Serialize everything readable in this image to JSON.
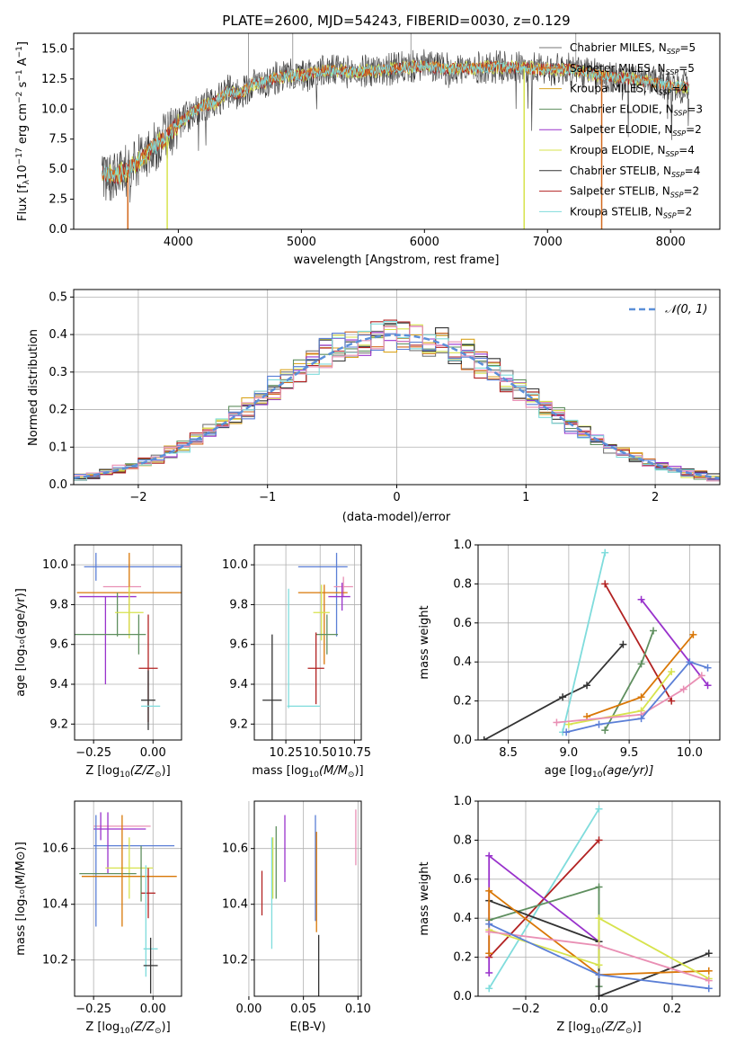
{
  "colors": {
    "c1": "#ff7f7f",
    "c2": "#d97706",
    "c3": "#5aa02c",
    "m_chab": "#777777",
    "m_salp": "#d2691e",
    "m_krou": "#daa520",
    "e_chab": "#5f8f5f",
    "e_salp": "#9932cc",
    "e_krou": "#d7e34d",
    "s_chab": "#333333",
    "s_salp": "#b22222",
    "s_krou": "#7fdcdc",
    "blue": "#5b7fd6",
    "pink": "#e98fb4",
    "norm": "#5b8fd8"
  },
  "chart_data": [
    {
      "type": "line",
      "title": "PLATE=2600, MJD=54243, FIBERID=0030, z=0.129",
      "xlabel": "wavelength [Angstrom, rest frame]",
      "ylabel": "Flux [fλ10⁻¹⁷ erg cm⁻² s⁻¹ A⁻¹]",
      "xlim": [
        3150,
        8400
      ],
      "ylim": [
        0,
        16.3
      ],
      "xticks": [
        "4000",
        "5000",
        "6000",
        "7000",
        "8000"
      ],
      "yticks": [
        "0.0",
        "2.5",
        "5.0",
        "7.5",
        "10.0",
        "12.5",
        "15.0"
      ],
      "legend": [
        "Chabrier MILES, N_SSP=5",
        "Salpeter MILES, N_SSP=5",
        "Kroupa MILES, N_SSP=4",
        "Chabrier ELODIE, N_SSP=3",
        "Salpeter ELODIE, N_SSP=2",
        "Kroupa ELODIE, N_SSP=4",
        "Chabrier STELIB, N_SSP=4",
        "Salpeter STELIB, N_SSP=2",
        "Kroupa STELIB, N_SSP=2"
      ],
      "legend_labels": [
        {
          "a": "Chabrier MILES, N",
          "s": "SSP",
          "b": "=5"
        },
        {
          "a": "Salpeter MILES, N",
          "s": "SSP",
          "b": "=5"
        },
        {
          "a": "Kroupa MILES, N",
          "s": "SSP",
          "b": "=4"
        },
        {
          "a": "Chabrier ELODIE, N",
          "s": "SSP",
          "b": "=3"
        },
        {
          "a": "Salpeter ELODIE, N",
          "s": "SSP",
          "b": "=2"
        },
        {
          "a": "Kroupa ELODIE, N",
          "s": "SSP",
          "b": "=4"
        },
        {
          "a": "Chabrier STELIB, N",
          "s": "SSP",
          "b": "=4"
        },
        {
          "a": "Salpeter STELIB, N",
          "s": "SSP",
          "b": "=2"
        },
        {
          "a": "Kroupa STELIB, N",
          "s": "SSP",
          "b": "=2"
        }
      ],
      "legend_position": "right",
      "continuum": {
        "x": [
          3380,
          3500,
          3600,
          3700,
          3800,
          3900,
          4000,
          4100,
          4200,
          4300,
          4400,
          4500,
          4600,
          4700,
          4800,
          4900,
          5000,
          5200,
          5400,
          5600,
          5800,
          6000,
          6200,
          6400,
          6600,
          6800,
          7000,
          7200,
          7400,
          7600,
          7800,
          8000,
          8150
        ],
        "y": [
          4.6,
          4.5,
          5.0,
          5.9,
          6.8,
          7.6,
          8.8,
          9.6,
          10.3,
          10.5,
          11.5,
          11.2,
          12.1,
          12.2,
          12.6,
          12.8,
          12.8,
          13.2,
          13.1,
          13.2,
          13.4,
          13.6,
          13.3,
          13.4,
          13.5,
          13.4,
          13.3,
          13.3,
          12.8,
          12.6,
          12.3,
          11.9,
          11.8
        ]
      },
      "spikes_down": [
        {
          "x": 3590,
          "y": 0.0,
          "series": "Salpeter MILES"
        },
        {
          "x": 3910,
          "y": 0.0,
          "series": "Kroupa ELODIE"
        },
        {
          "x": 6810,
          "y": 0.0,
          "series": "Kroupa ELODIE"
        },
        {
          "x": 7440,
          "y": 0.0,
          "series": "Salpeter MILES"
        }
      ],
      "spikes_up": [
        {
          "x": 4570,
          "y": 16.3
        },
        {
          "x": 4930,
          "y": 16.3
        },
        {
          "x": 5890,
          "y": 16.3
        },
        {
          "x": 7230,
          "y": 16.3
        }
      ],
      "grid": false
    },
    {
      "type": "histogram",
      "xlabel": "(data-model)/error",
      "ylabel": "Normed distribution",
      "xlim": [
        -2.5,
        2.5
      ],
      "ylim": [
        0,
        0.52
      ],
      "xticks": [
        "−2",
        "−1",
        "0",
        "1",
        "2"
      ],
      "yticks": [
        "0.0",
        "0.1",
        "0.2",
        "0.3",
        "0.4",
        "0.5"
      ],
      "bin_width": 0.1,
      "bins_from": -2.5,
      "reference_curve": "N(0,1)",
      "legend_main": "𝒩(0, 1)",
      "legend_position": "top-right",
      "grid": true
    },
    {
      "type": "errorbar",
      "xlabel_main": "Z [log",
      "xlabel_sub": "10",
      "xlabel_rest": "(Z/Z",
      "xlabel_end": ")]",
      "ylabel": "age  [log₁₀(age/yr)]",
      "xlim": [
        -0.33,
        0.12
      ],
      "ylim": [
        9.12,
        10.1
      ],
      "xticks": [
        "−0.25",
        "0.00"
      ],
      "xtick_values": [
        -0.25,
        0.0
      ],
      "yticks": [
        "9.2",
        "9.4",
        "9.6",
        "9.8",
        "10.0"
      ],
      "ytick_values": [
        9.2,
        9.4,
        9.6,
        9.8,
        10.0
      ],
      "points": [
        {
          "x": -0.08,
          "y": 9.99,
          "xerr": 0.21,
          "yerr": 0.0,
          "c": "#5b7fd6"
        },
        {
          "x": -0.24,
          "y": 9.99,
          "xerr": 0.0,
          "yerr": 0.07,
          "c": "#5b7fd6"
        },
        {
          "x": -0.13,
          "y": 9.89,
          "xerr": 0.08,
          "yerr": 0.0,
          "c": "#e98fb4"
        },
        {
          "x": -0.1,
          "y": 9.86,
          "xerr": 0.22,
          "yerr": 0.2,
          "c": "#d97706"
        },
        {
          "x": -0.19,
          "y": 9.84,
          "xerr": 0.12,
          "yerr": 0.0,
          "c": "#9932cc"
        },
        {
          "x": -0.2,
          "y": 9.62,
          "xerr": 0.0,
          "yerr": 0.22,
          "c": "#9932cc"
        },
        {
          "x": -0.15,
          "y": 9.75,
          "xerr": 0.0,
          "yerr": 0.11,
          "c": "#5f8f5f"
        },
        {
          "x": -0.1,
          "y": 9.76,
          "xerr": 0.06,
          "yerr": 0.13,
          "c": "#d7e34d"
        },
        {
          "x": -0.19,
          "y": 9.65,
          "xerr": 0.16,
          "yerr": 0.0,
          "c": "#5f8f5f"
        },
        {
          "x": -0.06,
          "y": 9.65,
          "xerr": 0.0,
          "yerr": 0.1,
          "c": "#5f8f5f"
        },
        {
          "x": -0.02,
          "y": 9.48,
          "xerr": 0.04,
          "yerr": 0.27,
          "c": "#b22222"
        },
        {
          "x": -0.02,
          "y": 9.32,
          "xerr": 0.03,
          "yerr": 0.15,
          "c": "#333333"
        },
        {
          "x": -0.01,
          "y": 9.29,
          "xerr": 0.04,
          "yerr": 0.0,
          "c": "#7fdcdc"
        }
      ],
      "grid": true
    },
    {
      "type": "errorbar",
      "xlabel_main": "mass [log",
      "xlabel_sub": "10",
      "xlabel_rest": "(M/M",
      "xlabel_end": ")]",
      "ylabel": "",
      "xlim": [
        10.02,
        10.8
      ],
      "ylim": [
        9.12,
        10.1
      ],
      "xticks": [
        "10.25",
        "10.50",
        "10.75"
      ],
      "xtick_values": [
        10.25,
        10.5,
        10.75
      ],
      "yticks": [
        "9.2",
        "9.4",
        "9.6",
        "9.8",
        "10.0"
      ],
      "ytick_values": [
        9.2,
        9.4,
        9.6,
        9.8,
        10.0
      ],
      "points": [
        {
          "x": 10.52,
          "y": 9.99,
          "xerr": 0.18,
          "yerr": 0.0,
          "c": "#5b7fd6"
        },
        {
          "x": 10.62,
          "y": 9.85,
          "xerr": 0.0,
          "yerr": 0.21,
          "c": "#5b7fd6"
        },
        {
          "x": 10.67,
          "y": 9.89,
          "xerr": 0.07,
          "yerr": 0.05,
          "c": "#e98fb4"
        },
        {
          "x": 10.52,
          "y": 9.86,
          "xerr": 0.18,
          "yerr": 0.0,
          "c": "#d97706"
        },
        {
          "x": 10.53,
          "y": 9.7,
          "xerr": 0.0,
          "yerr": 0.2,
          "c": "#d97706"
        },
        {
          "x": 10.64,
          "y": 9.84,
          "xerr": 0.08,
          "yerr": 0.0,
          "c": "#9932cc"
        },
        {
          "x": 10.66,
          "y": 9.84,
          "xerr": 0.0,
          "yerr": 0.07,
          "c": "#9932cc"
        },
        {
          "x": 10.51,
          "y": 9.76,
          "xerr": 0.06,
          "yerr": 0.14,
          "c": "#d7e34d"
        },
        {
          "x": 10.55,
          "y": 9.65,
          "xerr": 0.08,
          "yerr": 0.1,
          "c": "#5f8f5f"
        },
        {
          "x": 10.27,
          "y": 9.58,
          "xerr": 0.0,
          "yerr": 0.3,
          "c": "#7fdcdc"
        },
        {
          "x": 10.47,
          "y": 9.48,
          "xerr": 0.06,
          "yerr": 0.18,
          "c": "#b22222"
        },
        {
          "x": 10.15,
          "y": 9.32,
          "xerr": 0.07,
          "yerr": 0.33,
          "c": "#333333"
        },
        {
          "x": 10.38,
          "y": 9.29,
          "xerr": 0.12,
          "yerr": 0.0,
          "c": "#7fdcdc"
        }
      ],
      "grid": true
    },
    {
      "type": "line",
      "xlabel_main": "age  [log",
      "xlabel_sub": "10",
      "xlabel_rest": "(age/yr)]",
      "xlabel_end": "",
      "ylabel": "mass weight",
      "xlim": [
        8.25,
        10.25
      ],
      "ylim": [
        0,
        1.0
      ],
      "xticks": [
        "8.5",
        "9.0",
        "9.5",
        "10.0"
      ],
      "xtick_values": [
        8.5,
        9.0,
        9.5,
        10.0
      ],
      "yticks": [
        "0.0",
        "0.2",
        "0.4",
        "0.6",
        "0.8",
        "1.0"
      ],
      "ytick_values": [
        0,
        0.2,
        0.4,
        0.6,
        0.8,
        1.0
      ],
      "series": [
        {
          "c": "#333333",
          "x": [
            8.3,
            8.95,
            9.15,
            9.45
          ],
          "y": [
            0.0,
            0.22,
            0.28,
            0.49
          ]
        },
        {
          "c": "#7fdcdc",
          "x": [
            8.95,
            9.3
          ],
          "y": [
            0.04,
            0.96
          ]
        },
        {
          "c": "#b22222",
          "x": [
            9.3,
            9.85
          ],
          "y": [
            0.8,
            0.2
          ]
        },
        {
          "c": "#9932cc",
          "x": [
            9.6,
            10.15
          ],
          "y": [
            0.72,
            0.28
          ]
        },
        {
          "c": "#5f8f5f",
          "x": [
            9.3,
            9.6,
            9.7
          ],
          "y": [
            0.05,
            0.39,
            0.56
          ]
        },
        {
          "c": "#d97706",
          "x": [
            9.15,
            9.6,
            10.03
          ],
          "y": [
            0.12,
            0.22,
            0.54
          ]
        },
        {
          "c": "#d7e34d",
          "x": [
            9.0,
            9.6,
            9.85
          ],
          "y": [
            0.08,
            0.15,
            0.35
          ]
        },
        {
          "c": "#e98fb4",
          "x": [
            8.9,
            9.6,
            9.95,
            10.1
          ],
          "y": [
            0.09,
            0.13,
            0.26,
            0.33
          ]
        },
        {
          "c": "#5b7fd6",
          "x": [
            8.98,
            9.25,
            9.6,
            10.0,
            10.15
          ],
          "y": [
            0.04,
            0.08,
            0.11,
            0.4,
            0.37
          ]
        }
      ],
      "grid": true
    },
    {
      "type": "errorbar",
      "xlabel_main": "Z [log",
      "xlabel_sub": "10",
      "xlabel_rest": "(Z/Z",
      "xlabel_end": ")]",
      "ylabel": "mass [log₁₀(M/M⊙)]",
      "xlim": [
        -0.33,
        0.12
      ],
      "ylim": [
        10.07,
        10.77
      ],
      "xticks": [
        "−0.25",
        "0.00"
      ],
      "xtick_values": [
        -0.25,
        0.0
      ],
      "yticks": [
        "10.2",
        "10.4",
        "10.6"
      ],
      "ytick_values": [
        10.2,
        10.4,
        10.6
      ],
      "points": [
        {
          "x": -0.13,
          "y": 10.68,
          "xerr": 0.12,
          "yerr": 0.0,
          "c": "#e98fb4"
        },
        {
          "x": -0.22,
          "y": 10.68,
          "xerr": 0.0,
          "yerr": 0.05,
          "c": "#9932cc"
        },
        {
          "x": -0.14,
          "y": 10.67,
          "xerr": 0.11,
          "yerr": 0.0,
          "c": "#9932cc"
        },
        {
          "x": -0.24,
          "y": 10.52,
          "xerr": 0.0,
          "yerr": 0.2,
          "c": "#5b7fd6"
        },
        {
          "x": -0.08,
          "y": 10.61,
          "xerr": 0.17,
          "yerr": 0.0,
          "c": "#5b7fd6"
        },
        {
          "x": -0.19,
          "y": 10.62,
          "xerr": 0.0,
          "yerr": 0.11,
          "c": "#9932cc"
        },
        {
          "x": -0.1,
          "y": 10.53,
          "xerr": 0.1,
          "yerr": 0.11,
          "c": "#d7e34d"
        },
        {
          "x": -0.19,
          "y": 10.51,
          "xerr": 0.12,
          "yerr": 0.0,
          "c": "#5f8f5f"
        },
        {
          "x": -0.1,
          "y": 10.5,
          "xerr": 0.2,
          "yerr": 0.0,
          "c": "#d97706"
        },
        {
          "x": -0.13,
          "y": 10.52,
          "xerr": 0.0,
          "yerr": 0.2,
          "c": "#d97706"
        },
        {
          "x": -0.05,
          "y": 10.51,
          "xerr": 0.0,
          "yerr": 0.1,
          "c": "#5f8f5f"
        },
        {
          "x": -0.02,
          "y": 10.44,
          "xerr": 0.03,
          "yerr": 0.09,
          "c": "#b22222"
        },
        {
          "x": -0.01,
          "y": 10.24,
          "xerr": 0.03,
          "yerr": 0.0,
          "c": "#7fdcdc"
        },
        {
          "x": -0.03,
          "y": 10.34,
          "xerr": 0.0,
          "yerr": 0.2,
          "c": "#7fdcdc"
        },
        {
          "x": -0.01,
          "y": 10.18,
          "xerr": 0.03,
          "yerr": 0.1,
          "c": "#333333"
        }
      ],
      "grid": true
    },
    {
      "type": "errorbar",
      "xlabel_main": "E(B-V)",
      "xlabel_sub": "",
      "xlabel_rest": "",
      "xlabel_end": "",
      "ylabel": "",
      "xlim": [
        0.005,
        0.103
      ],
      "ylim": [
        10.07,
        10.77
      ],
      "xticks": [
        "0.00",
        "0.05",
        "0.10"
      ],
      "xtick_values": [
        0.0,
        0.05,
        0.1
      ],
      "yticks": [
        "10.2",
        "10.4",
        "10.6"
      ],
      "ytick_values": [
        10.2,
        10.4,
        10.6
      ],
      "points": [
        {
          "x": 0.012,
          "y": 10.44,
          "xerr": 0.0,
          "yerr": 0.08,
          "c": "#b22222"
        },
        {
          "x": 0.021,
          "y": 10.44,
          "xerr": 0.0,
          "yerr": 0.2,
          "c": "#7fdcdc"
        },
        {
          "x": 0.022,
          "y": 10.53,
          "xerr": 0.0,
          "yerr": 0.11,
          "c": "#d7e34d"
        },
        {
          "x": 0.025,
          "y": 10.55,
          "xerr": 0.0,
          "yerr": 0.13,
          "c": "#5f8f5f"
        },
        {
          "x": 0.033,
          "y": 10.6,
          "xerr": 0.0,
          "yerr": 0.12,
          "c": "#9932cc"
        },
        {
          "x": 0.061,
          "y": 10.53,
          "xerr": 0.0,
          "yerr": 0.19,
          "c": "#5b7fd6"
        },
        {
          "x": 0.062,
          "y": 10.48,
          "xerr": 0.0,
          "yerr": 0.18,
          "c": "#d97706"
        },
        {
          "x": 0.064,
          "y": 10.15,
          "xerr": 0.0,
          "yerr": 0.14,
          "c": "#333333"
        },
        {
          "x": 0.098,
          "y": 10.64,
          "xerr": 0.0,
          "yerr": 0.1,
          "c": "#e98fb4"
        }
      ],
      "grid": true
    },
    {
      "type": "line",
      "xlabel_main": "Z [log",
      "xlabel_sub": "10",
      "xlabel_rest": "(Z/Z",
      "xlabel_end": ")]",
      "ylabel": "mass weight",
      "xlim": [
        -0.33,
        0.33
      ],
      "ylim": [
        0,
        1.0
      ],
      "xticks": [
        "−0.2",
        "0.0",
        "0.2"
      ],
      "xtick_values": [
        -0.2,
        0.0,
        0.2
      ],
      "yticks": [
        "0.0",
        "0.2",
        "0.4",
        "0.6",
        "0.8",
        "1.0"
      ],
      "ytick_values": [
        0,
        0.2,
        0.4,
        0.6,
        0.8,
        1.0
      ],
      "series": [
        {
          "c": "#7fdcdc",
          "x": [
            -0.3,
            0.0
          ],
          "y": [
            0.04,
            0.96
          ]
        },
        {
          "c": "#b22222",
          "x": [
            -0.3,
            0.0
          ],
          "y": [
            0.2,
            0.8
          ]
        },
        {
          "c": "#9932cc",
          "x": [
            -0.3,
            -0.3,
            0.0
          ],
          "y": [
            0.12,
            0.72,
            0.28
          ]
        },
        {
          "c": "#5f8f5f",
          "x": [
            -0.3,
            0.0,
            0.0
          ],
          "y": [
            0.39,
            0.56,
            0.05
          ]
        },
        {
          "c": "#333333",
          "x": [
            -0.3,
            0.0,
            0.0,
            0.3
          ],
          "y": [
            0.49,
            0.28,
            0.0,
            0.22
          ]
        },
        {
          "c": "#d97706",
          "x": [
            -0.3,
            -0.3,
            0.0,
            0.3
          ],
          "y": [
            0.22,
            0.54,
            0.11,
            0.13
          ]
        },
        {
          "c": "#d7e34d",
          "x": [
            -0.3,
            0.0,
            0.0,
            0.3
          ],
          "y": [
            0.34,
            0.16,
            0.4,
            0.09
          ]
        },
        {
          "c": "#e98fb4",
          "x": [
            -0.3,
            0.0,
            0.3
          ],
          "y": [
            0.33,
            0.26,
            0.08
          ]
        },
        {
          "c": "#5b7fd6",
          "x": [
            -0.3,
            0.0,
            0.3
          ],
          "y": [
            0.37,
            0.11,
            0.04
          ]
        }
      ],
      "grid": true
    }
  ]
}
